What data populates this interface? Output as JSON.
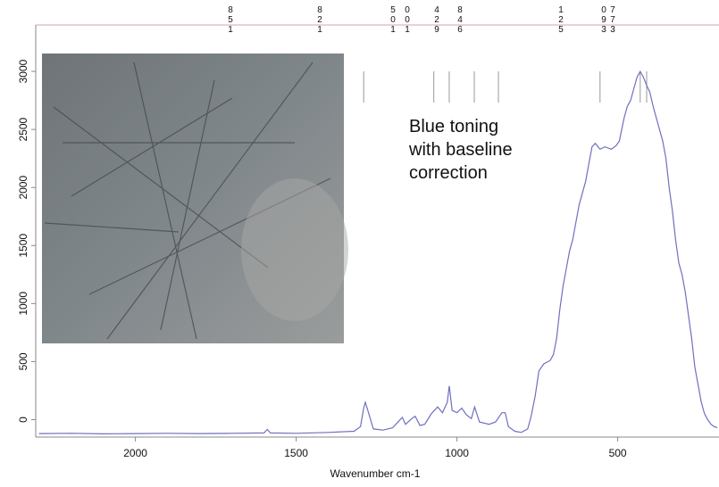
{
  "chart_data": {
    "type": "line",
    "xlabel": "Wavenumber cm-1",
    "annotation": "Blue toning with baseline correction",
    "peak_labels": [
      "851",
      "821",
      "501",
      "001",
      "429",
      "846",
      "125",
      "093",
      "773"
    ],
    "peak_marks": [
      1290,
      1072,
      1024,
      946,
      871,
      555,
      430,
      410
    ],
    "xlim": [
      2310,
      185
    ],
    "ylim": [
      -150,
      3400
    ],
    "xticks": [
      2000,
      1500,
      1000,
      500
    ],
    "yticks": [
      0,
      500,
      1000,
      1500,
      2000,
      2500,
      3000
    ],
    "series": [
      {
        "color": "#6f6fc0",
        "x": [
          2300,
          2200,
          2100,
          2000,
          1900,
          1800,
          1700,
          1600,
          1590,
          1580,
          1500,
          1400,
          1320,
          1300,
          1290,
          1285,
          1275,
          1260,
          1230,
          1200,
          1180,
          1170,
          1160,
          1140,
          1130,
          1115,
          1100,
          1080,
          1060,
          1045,
          1030,
          1024,
          1015,
          1000,
          985,
          970,
          955,
          945,
          930,
          900,
          880,
          860,
          850,
          840,
          820,
          800,
          780,
          770,
          757,
          745,
          730,
          710,
          700,
          690,
          680,
          670,
          660,
          650,
          640,
          630,
          620,
          610,
          600,
          590,
          580,
          570,
          555,
          540,
          520,
          505,
          495,
          480,
          470,
          460,
          450,
          440,
          430,
          420,
          410,
          400,
          390,
          380,
          370,
          360,
          350,
          340,
          330,
          320,
          310,
          300,
          290,
          280,
          270,
          260,
          250,
          240,
          230,
          220,
          210,
          200,
          190
        ],
        "values": [
          -120,
          -118,
          -122,
          -120,
          -118,
          -120,
          -118,
          -115,
          -85,
          -115,
          -118,
          -110,
          -100,
          -60,
          100,
          150,
          60,
          -80,
          -90,
          -70,
          -10,
          20,
          -40,
          10,
          30,
          -50,
          -40,
          50,
          110,
          60,
          150,
          290,
          80,
          60,
          100,
          40,
          10,
          110,
          -20,
          -40,
          -20,
          60,
          60,
          -60,
          -100,
          -110,
          -80,
          20,
          200,
          420,
          480,
          510,
          560,
          700,
          950,
          1150,
          1300,
          1450,
          1550,
          1700,
          1850,
          1950,
          2050,
          2200,
          2350,
          2380,
          2330,
          2350,
          2330,
          2360,
          2400,
          2600,
          2700,
          2750,
          2850,
          2950,
          3000,
          2950,
          2880,
          2820,
          2700,
          2600,
          2500,
          2400,
          2250,
          2000,
          1800,
          1550,
          1350,
          1250,
          1100,
          900,
          700,
          450,
          300,
          150,
          50,
          0,
          -40,
          -60,
          -70
        ]
      }
    ]
  }
}
